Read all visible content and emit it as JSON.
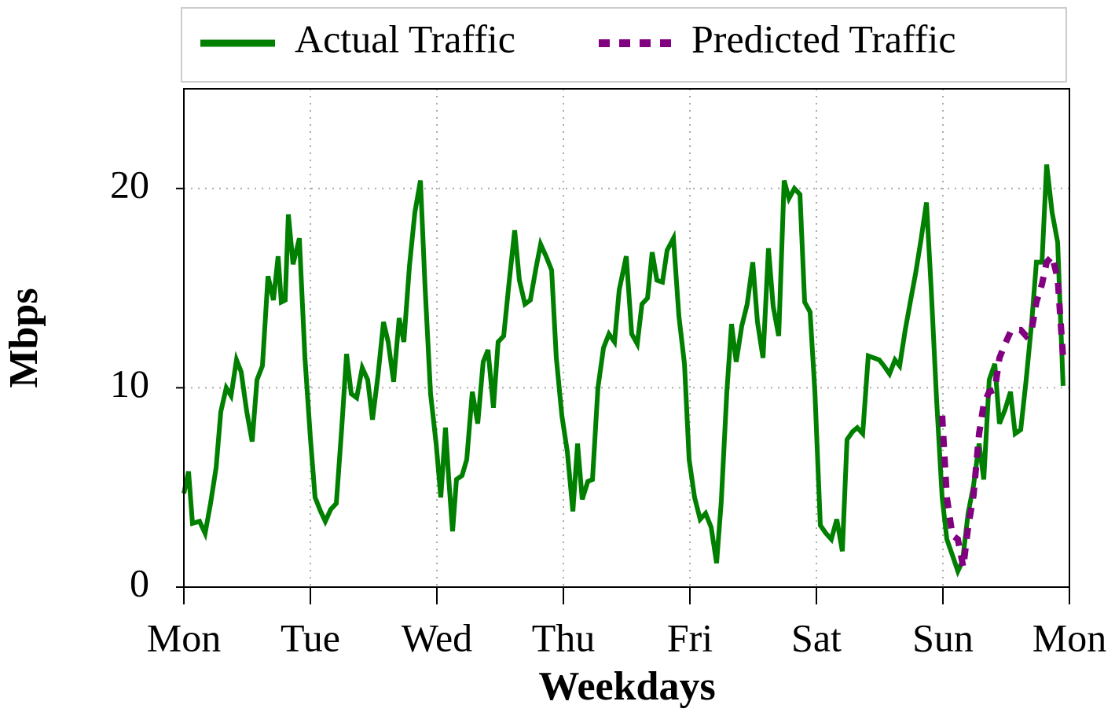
{
  "chart_data": {
    "type": "line",
    "xlabel": "Weekdays",
    "ylabel": "Mbps",
    "xlim": [
      0,
      7
    ],
    "ylim": [
      0,
      25
    ],
    "xticks": [
      {
        "value": 0,
        "label": "Mon"
      },
      {
        "value": 1,
        "label": "Tue"
      },
      {
        "value": 2,
        "label": "Wed"
      },
      {
        "value": 3,
        "label": "Thu"
      },
      {
        "value": 4,
        "label": "Fri"
      },
      {
        "value": 5,
        "label": "Sat"
      },
      {
        "value": 6,
        "label": "Sun"
      },
      {
        "value": 7,
        "label": "Mon"
      }
    ],
    "yticks": [
      0,
      10,
      20
    ],
    "grid": true,
    "legend": "top",
    "series": [
      {
        "name": "Actual Traffic",
        "color": "#007f00",
        "dash": "solid",
        "x": [
          0,
          0.037,
          0.068,
          0.124,
          0.168,
          0.211,
          0.255,
          0.292,
          0.335,
          0.373,
          0.416,
          0.453,
          0.497,
          0.54,
          0.578,
          0.621,
          0.665,
          0.708,
          0.745,
          0.77,
          0.801,
          0.826,
          0.863,
          0.913,
          0.957,
          1.0,
          1.037,
          1.081,
          1.118,
          1.161,
          1.205,
          1.248,
          1.286,
          1.323,
          1.366,
          1.41,
          1.453,
          1.491,
          1.534,
          1.578,
          1.615,
          1.658,
          1.702,
          1.739,
          1.783,
          1.826,
          1.87,
          1.907,
          1.95,
          1.994,
          2.031,
          2.068,
          2.093,
          2.124,
          2.155,
          2.199,
          2.236,
          2.28,
          2.323,
          2.366,
          2.404,
          2.447,
          2.484,
          2.528,
          2.571,
          2.615,
          2.652,
          2.696,
          2.739,
          2.783,
          2.82,
          2.863,
          2.907,
          2.944,
          2.988,
          3.031,
          3.075,
          3.112,
          3.149,
          3.193,
          3.23,
          3.273,
          3.317,
          3.36,
          3.404,
          3.441,
          3.497,
          3.54,
          3.584,
          3.621,
          3.665,
          3.702,
          3.739,
          3.783,
          3.82,
          3.87,
          3.913,
          3.957,
          3.994,
          4.037,
          4.081,
          4.124,
          4.168,
          4.211,
          4.248,
          4.292,
          4.329,
          4.366,
          4.41,
          4.453,
          4.497,
          4.534,
          4.578,
          4.621,
          4.658,
          4.702,
          4.745,
          4.783,
          4.826,
          4.87,
          4.907,
          4.95,
          4.988,
          5.031,
          5.075,
          5.118,
          5.161,
          5.205,
          5.242,
          5.286,
          5.323,
          5.366,
          5.41,
          5.453,
          5.497,
          5.534,
          5.578,
          5.621,
          5.658,
          5.702,
          5.745,
          5.783,
          5.826,
          5.87,
          5.907,
          5.95,
          5.994,
          6.031,
          6.075,
          6.118,
          6.155,
          6.199,
          6.242,
          6.286,
          6.323,
          6.366,
          6.41,
          6.447,
          6.491,
          6.534,
          6.571,
          6.615,
          6.658,
          6.702,
          6.739,
          6.783,
          6.82,
          6.863,
          6.907,
          6.95
        ],
        "values": [
          4.7,
          5.8,
          3.2,
          3.3,
          2.7,
          4.2,
          6.0,
          8.8,
          10.0,
          9.6,
          11.4,
          10.8,
          8.8,
          7.3,
          10.4,
          11.1,
          15.6,
          14.4,
          16.6,
          14.3,
          14.4,
          18.7,
          16.2,
          17.5,
          11.5,
          7.5,
          4.5,
          3.8,
          3.3,
          3.9,
          4.2,
          8.0,
          11.7,
          9.7,
          9.5,
          11.0,
          10.4,
          8.4,
          10.6,
          13.3,
          12.3,
          10.3,
          13.5,
          12.3,
          16.1,
          18.8,
          20.4,
          15.0,
          9.7,
          7.2,
          4.5,
          8.0,
          5.5,
          2.8,
          5.4,
          5.6,
          6.4,
          9.8,
          8.2,
          11.3,
          11.9,
          9.0,
          12.3,
          12.6,
          15.3,
          17.9,
          15.4,
          14.2,
          14.4,
          16.0,
          17.2,
          16.6,
          15.9,
          11.5,
          8.6,
          6.8,
          3.8,
          7.2,
          4.4,
          5.3,
          5.4,
          10.0,
          12.0,
          12.7,
          12.3,
          14.9,
          16.6,
          12.7,
          12.2,
          14.2,
          14.5,
          16.8,
          15.4,
          15.3,
          16.9,
          17.5,
          13.6,
          11.2,
          6.4,
          4.5,
          3.4,
          3.7,
          3.0,
          1.2,
          4.3,
          9.8,
          13.2,
          11.3,
          13.1,
          14.2,
          16.3,
          13.3,
          11.5,
          17.0,
          14.1,
          12.6,
          20.4,
          19.5,
          20.0,
          19.7,
          14.3,
          13.8,
          9.8,
          3.1,
          2.7,
          2.4,
          3.4,
          1.8,
          7.4,
          7.8,
          8.0,
          7.7,
          11.6,
          11.5,
          11.4,
          11.1,
          10.7,
          11.4,
          11.1,
          12.9,
          14.4,
          15.7,
          17.4,
          19.3,
          15.0,
          9.4,
          4.5,
          2.4,
          1.6,
          0.8,
          1.3,
          3.7,
          5.1,
          7.2,
          5.4,
          10.4,
          11.2,
          8.2,
          8.9,
          9.8,
          7.7,
          7.9,
          10.4,
          13.3,
          16.3,
          16.3,
          21.2,
          18.8,
          17.3,
          10.1
        ]
      },
      {
        "name": "Predicted Traffic",
        "color": "#800080",
        "dash": "dashed",
        "x": [
          5.994,
          6.031,
          6.075,
          6.118,
          6.161,
          6.199,
          6.242,
          6.286,
          6.323,
          6.366,
          6.41,
          6.447,
          6.491,
          6.534,
          6.571,
          6.615,
          6.658,
          6.702,
          6.739,
          6.783,
          6.82,
          6.863,
          6.907,
          6.95
        ],
        "values": [
          8.6,
          4.5,
          2.6,
          2.4,
          1.0,
          3.0,
          4.6,
          7.7,
          9.2,
          9.8,
          9.9,
          11.5,
          12.2,
          12.8,
          12.9,
          12.9,
          12.6,
          12.9,
          14.3,
          15.2,
          16.3,
          16.6,
          15.5,
          11.5
        ]
      }
    ]
  }
}
